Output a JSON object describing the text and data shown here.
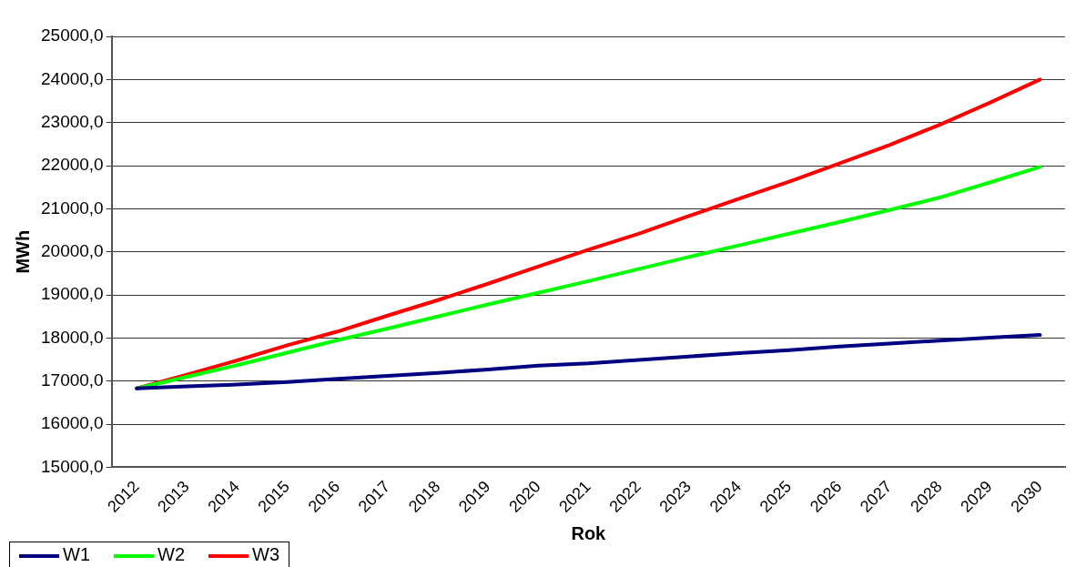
{
  "chart_data": {
    "type": "line",
    "xlabel": "Rok",
    "ylabel": "MWh",
    "categories": [
      "2012",
      "2013",
      "2014",
      "2015",
      "2016",
      "2017",
      "2018",
      "2019",
      "2020",
      "2021",
      "2022",
      "2023",
      "2024",
      "2025",
      "2026",
      "2027",
      "2028",
      "2029",
      "2030"
    ],
    "series": [
      {
        "name": "W1",
        "color": "#000080",
        "values": [
          16830,
          16880,
          16920,
          16980,
          17050,
          17120,
          17190,
          17270,
          17360,
          17410,
          17490,
          17570,
          17650,
          17720,
          17800,
          17870,
          17940,
          18010,
          18070
        ]
      },
      {
        "name": "W2",
        "color": "#00ff00",
        "values": [
          16830,
          17100,
          17370,
          17660,
          17950,
          18220,
          18500,
          18780,
          19050,
          19320,
          19600,
          19880,
          20150,
          20420,
          20690,
          20970,
          21260,
          21610,
          21970
        ]
      },
      {
        "name": "W3",
        "color": "#ff0000",
        "values": [
          16830,
          17150,
          17480,
          17830,
          18150,
          18520,
          18880,
          19260,
          19660,
          20050,
          20420,
          20830,
          21230,
          21630,
          22050,
          22480,
          22950,
          23460,
          24000
        ]
      }
    ],
    "ylim": [
      15000,
      25000
    ],
    "yticks": [
      {
        "value": 15000,
        "label": "15000,0"
      },
      {
        "value": 16000,
        "label": "16000,0"
      },
      {
        "value": 17000,
        "label": "17000,0"
      },
      {
        "value": 18000,
        "label": "18000,0"
      },
      {
        "value": 19000,
        "label": "19000,0"
      },
      {
        "value": 20000,
        "label": "20000,0"
      },
      {
        "value": 21000,
        "label": "21000,0"
      },
      {
        "value": 22000,
        "label": "22000,0"
      },
      {
        "value": 23000,
        "label": "23000,0"
      },
      {
        "value": 24000,
        "label": "24000,0"
      },
      {
        "value": 25000,
        "label": "25000,0"
      }
    ],
    "grid": "y",
    "legend": "bottom left",
    "marker": "none",
    "line_style": "solid"
  }
}
